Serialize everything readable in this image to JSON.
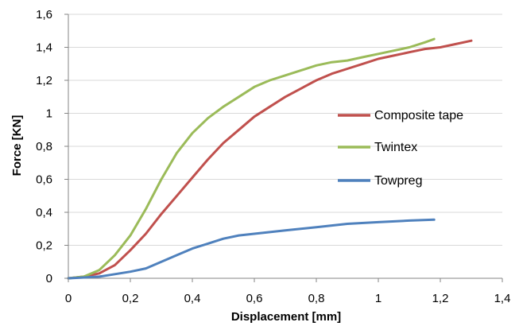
{
  "chart_data": {
    "type": "line",
    "xlabel": "Displacement [mm]",
    "ylabel": "Force [KN]",
    "xlim": [
      0,
      1.4
    ],
    "ylim": [
      0,
      1.6
    ],
    "xticks": [
      0,
      0.2,
      0.4,
      0.6,
      0.8,
      1,
      1.2,
      1.4
    ],
    "yticks": [
      0,
      0.2,
      0.4,
      0.6,
      0.8,
      1,
      1.2,
      1.4,
      1.6
    ],
    "xtick_labels": [
      "0",
      "0,2",
      "0,4",
      "0,6",
      "0,8",
      "1",
      "1,2",
      "1,4"
    ],
    "ytick_labels": [
      "0",
      "0,2",
      "0,4",
      "0,6",
      "0,8",
      "1",
      "1,2",
      "1,4",
      "1,6"
    ],
    "grid": "horizontal",
    "legend_position": "right",
    "series": [
      {
        "name": "Composite tape",
        "color": "#c0504d",
        "x": [
          0,
          0.05,
          0.1,
          0.15,
          0.2,
          0.25,
          0.3,
          0.35,
          0.4,
          0.45,
          0.5,
          0.55,
          0.6,
          0.65,
          0.7,
          0.75,
          0.8,
          0.85,
          0.9,
          0.95,
          1.0,
          1.05,
          1.1,
          1.15,
          1.2,
          1.25,
          1.3
        ],
        "y": [
          0,
          0.01,
          0.03,
          0.08,
          0.17,
          0.27,
          0.39,
          0.5,
          0.61,
          0.72,
          0.82,
          0.9,
          0.98,
          1.04,
          1.1,
          1.15,
          1.2,
          1.24,
          1.27,
          1.3,
          1.33,
          1.35,
          1.37,
          1.39,
          1.4,
          1.42,
          1.44
        ]
      },
      {
        "name": "Twintex",
        "color": "#9bbb59",
        "x": [
          0,
          0.05,
          0.1,
          0.15,
          0.2,
          0.25,
          0.3,
          0.35,
          0.4,
          0.45,
          0.5,
          0.55,
          0.6,
          0.65,
          0.7,
          0.75,
          0.8,
          0.85,
          0.9,
          0.95,
          1.0,
          1.05,
          1.1,
          1.15,
          1.18
        ],
        "y": [
          0,
          0.01,
          0.05,
          0.14,
          0.26,
          0.42,
          0.6,
          0.76,
          0.88,
          0.97,
          1.04,
          1.1,
          1.16,
          1.2,
          1.23,
          1.26,
          1.29,
          1.31,
          1.32,
          1.34,
          1.36,
          1.38,
          1.4,
          1.43,
          1.45
        ]
      },
      {
        "name": "Towpreg",
        "color": "#4f81bd",
        "x": [
          0,
          0.05,
          0.1,
          0.15,
          0.2,
          0.25,
          0.3,
          0.35,
          0.4,
          0.45,
          0.5,
          0.55,
          0.6,
          0.7,
          0.8,
          0.9,
          1.0,
          1.1,
          1.18
        ],
        "y": [
          0,
          0.005,
          0.01,
          0.025,
          0.04,
          0.06,
          0.1,
          0.14,
          0.18,
          0.21,
          0.24,
          0.26,
          0.27,
          0.29,
          0.31,
          0.33,
          0.34,
          0.35,
          0.355
        ]
      }
    ]
  }
}
